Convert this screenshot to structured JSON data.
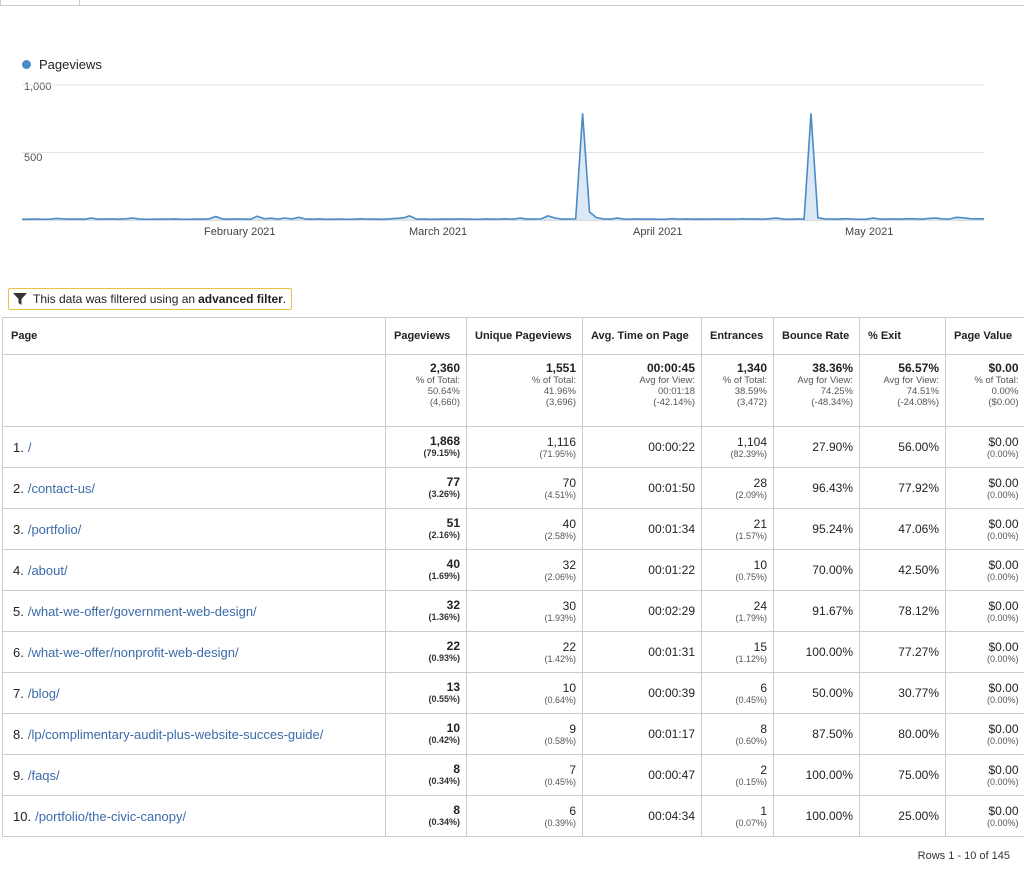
{
  "chart": {
    "legend": "Pageviews",
    "y_ticks": [
      "1,000",
      "500"
    ],
    "x_ticks": [
      "February 2021",
      "March 2021",
      "April 2021",
      "May 2021"
    ],
    "series_color": "#4a8bc6"
  },
  "chart_data": {
    "type": "line",
    "title": "",
    "xlabel": "",
    "ylabel": "",
    "ylim": [
      0,
      1000
    ],
    "series": [
      {
        "name": "Pageviews",
        "values": [
          5,
          6,
          7,
          5,
          6,
          12,
          8,
          6,
          7,
          5,
          14,
          6,
          7,
          8,
          6,
          9,
          14,
          7,
          5,
          6,
          7,
          6,
          8,
          6,
          5,
          7,
          6,
          8,
          26,
          7,
          6,
          8,
          7,
          5,
          28,
          9,
          13,
          6,
          15,
          8,
          20,
          7,
          6,
          8,
          5,
          6,
          7,
          5,
          6,
          9,
          6,
          7,
          5,
          8,
          12,
          14,
          30,
          6,
          7,
          5,
          6,
          7,
          6,
          8,
          7,
          6,
          5,
          8,
          6,
          7,
          9,
          6,
          14,
          6,
          7,
          8,
          30,
          15,
          6,
          7,
          8,
          790,
          60,
          18,
          8,
          6,
          14,
          7,
          6,
          8,
          6,
          7,
          5,
          6,
          10,
          6,
          8,
          6,
          7,
          6,
          8,
          6,
          7,
          6,
          9,
          7,
          8,
          6,
          10,
          14,
          7,
          5,
          8,
          6,
          790,
          16,
          8,
          7,
          6,
          10,
          7,
          5,
          6,
          14,
          6,
          7,
          8,
          6,
          10,
          9,
          6,
          12,
          14,
          8,
          7,
          20,
          16,
          10,
          9,
          8
        ]
      }
    ]
  },
  "filter_note": {
    "prefix": "This data was filtered using an",
    "bold": "advanced filter",
    "suffix": "."
  },
  "table": {
    "headers": [
      "Page",
      "Pageviews",
      "Unique Pageviews",
      "Avg. Time on Page",
      "Entrances",
      "Bounce Rate",
      "% Exit",
      "Page Value"
    ],
    "summary": [
      {
        "value": "2,360",
        "l1": "% of Total:",
        "l2": "50.64%",
        "l3": "(4,660)"
      },
      {
        "value": "1,551",
        "l1": "% of Total:",
        "l2": "41.96%",
        "l3": "(3,696)"
      },
      {
        "value": "00:00:45",
        "l1": "Avg for View:",
        "l2": "00:01:18",
        "l3": "(-42.14%)"
      },
      {
        "value": "1,340",
        "l1": "% of Total:",
        "l2": "38.59%",
        "l3": "(3,472)"
      },
      {
        "value": "38.36%",
        "l1": "Avg for View:",
        "l2": "74.25%",
        "l3": "(-48.34%)"
      },
      {
        "value": "56.57%",
        "l1": "Avg for View:",
        "l2": "74.51%",
        "l3": "(-24.08%)"
      },
      {
        "value": "$0.00",
        "l1": "% of Total:",
        "l2": "0.00%",
        "l3": "($0.00)"
      }
    ],
    "rows": [
      {
        "idx": "1.",
        "page": "/",
        "pv": "1,868",
        "pv_pct": "(79.15%)",
        "upv": "1,116",
        "upv_pct": "(71.95%)",
        "time": "00:00:22",
        "ent": "1,104",
        "ent_pct": "(82.39%)",
        "bounce": "27.90%",
        "exit": "56.00%",
        "value": "$0.00",
        "value_pct": "(0.00%)"
      },
      {
        "idx": "2.",
        "page": "/contact-us/",
        "pv": "77",
        "pv_pct": "(3.26%)",
        "upv": "70",
        "upv_pct": "(4.51%)",
        "time": "00:01:50",
        "ent": "28",
        "ent_pct": "(2.09%)",
        "bounce": "96.43%",
        "exit": "77.92%",
        "value": "$0.00",
        "value_pct": "(0.00%)"
      },
      {
        "idx": "3.",
        "page": "/portfolio/",
        "pv": "51",
        "pv_pct": "(2.16%)",
        "upv": "40",
        "upv_pct": "(2.58%)",
        "time": "00:01:34",
        "ent": "21",
        "ent_pct": "(1.57%)",
        "bounce": "95.24%",
        "exit": "47.06%",
        "value": "$0.00",
        "value_pct": "(0.00%)"
      },
      {
        "idx": "4.",
        "page": "/about/",
        "pv": "40",
        "pv_pct": "(1.69%)",
        "upv": "32",
        "upv_pct": "(2.06%)",
        "time": "00:01:22",
        "ent": "10",
        "ent_pct": "(0.75%)",
        "bounce": "70.00%",
        "exit": "42.50%",
        "value": "$0.00",
        "value_pct": "(0.00%)"
      },
      {
        "idx": "5.",
        "page": "/what-we-offer/government-web-design/",
        "pv": "32",
        "pv_pct": "(1.36%)",
        "upv": "30",
        "upv_pct": "(1.93%)",
        "time": "00:02:29",
        "ent": "24",
        "ent_pct": "(1.79%)",
        "bounce": "91.67%",
        "exit": "78.12%",
        "value": "$0.00",
        "value_pct": "(0.00%)"
      },
      {
        "idx": "6.",
        "page": "/what-we-offer/nonprofit-web-design/",
        "pv": "22",
        "pv_pct": "(0.93%)",
        "upv": "22",
        "upv_pct": "(1.42%)",
        "time": "00:01:31",
        "ent": "15",
        "ent_pct": "(1.12%)",
        "bounce": "100.00%",
        "exit": "77.27%",
        "value": "$0.00",
        "value_pct": "(0.00%)"
      },
      {
        "idx": "7.",
        "page": "/blog/",
        "pv": "13",
        "pv_pct": "(0.55%)",
        "upv": "10",
        "upv_pct": "(0.64%)",
        "time": "00:00:39",
        "ent": "6",
        "ent_pct": "(0.45%)",
        "bounce": "50.00%",
        "exit": "30.77%",
        "value": "$0.00",
        "value_pct": "(0.00%)"
      },
      {
        "idx": "8.",
        "page": "/lp/complimentary-audit-plus-website-succes-guide/",
        "pv": "10",
        "pv_pct": "(0.42%)",
        "upv": "9",
        "upv_pct": "(0.58%)",
        "time": "00:01:17",
        "ent": "8",
        "ent_pct": "(0.60%)",
        "bounce": "87.50%",
        "exit": "80.00%",
        "value": "$0.00",
        "value_pct": "(0.00%)"
      },
      {
        "idx": "9.",
        "page": "/faqs/",
        "pv": "8",
        "pv_pct": "(0.34%)",
        "upv": "7",
        "upv_pct": "(0.45%)",
        "time": "00:00:47",
        "ent": "2",
        "ent_pct": "(0.15%)",
        "bounce": "100.00%",
        "exit": "75.00%",
        "value": "$0.00",
        "value_pct": "(0.00%)"
      },
      {
        "idx": "10.",
        "page": "/portfolio/the-civic-canopy/",
        "pv": "8",
        "pv_pct": "(0.34%)",
        "upv": "6",
        "upv_pct": "(0.39%)",
        "time": "00:04:34",
        "ent": "1",
        "ent_pct": "(0.07%)",
        "bounce": "100.00%",
        "exit": "25.00%",
        "value": "$0.00",
        "value_pct": "(0.00%)"
      }
    ]
  },
  "pagination": {
    "label": "Rows 1 - 10 of 145"
  }
}
